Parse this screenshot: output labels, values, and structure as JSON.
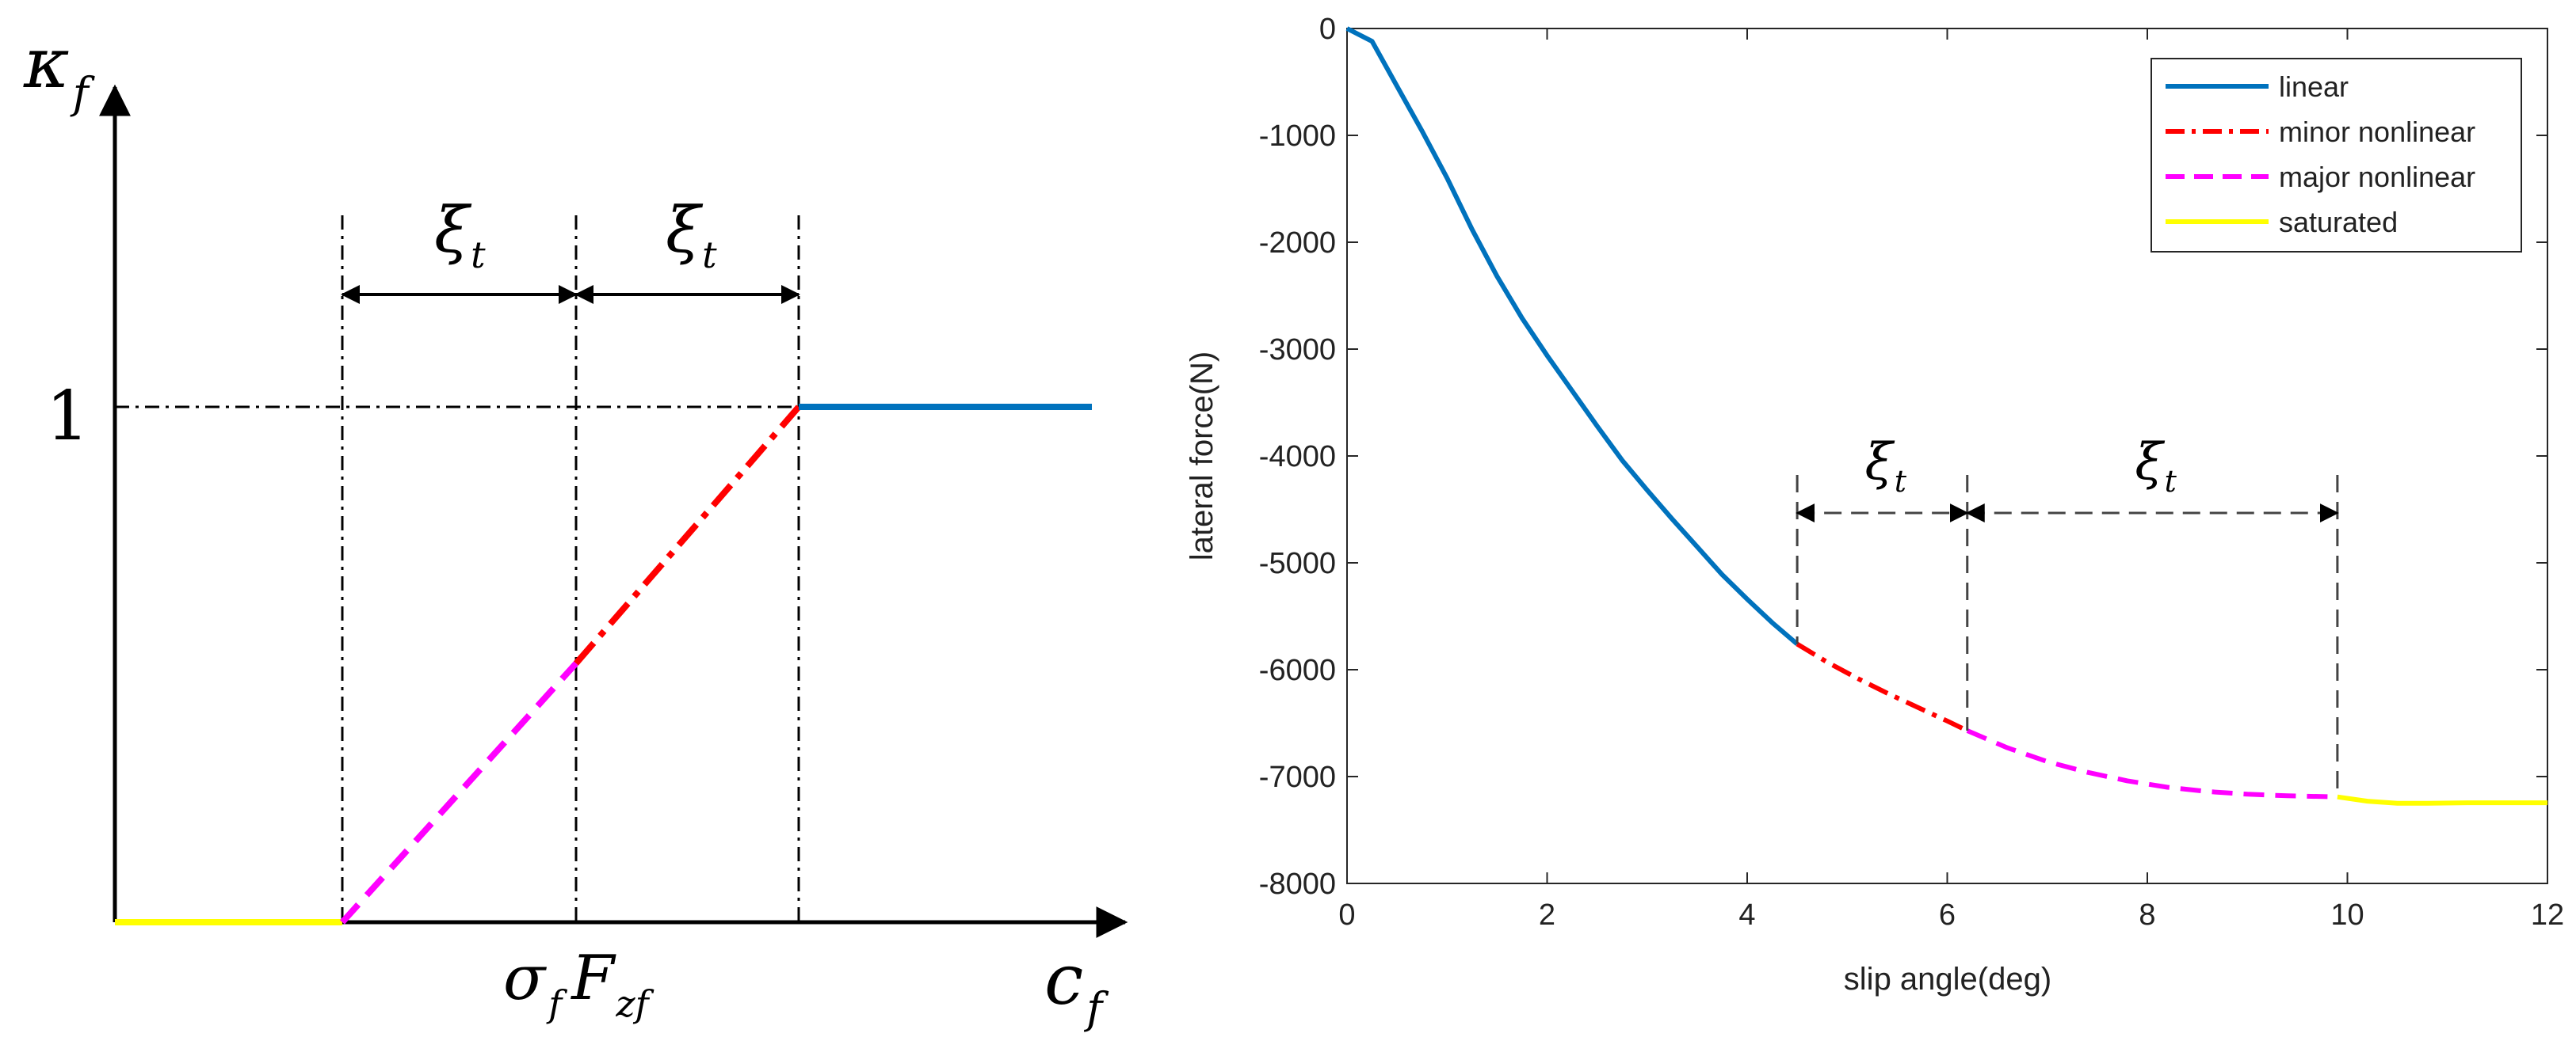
{
  "colors": {
    "linear": "#0072BD",
    "minor_nonlinear": "#FF0000",
    "major_nonlinear": "#FF00FF",
    "saturated": "#FFFF00",
    "axis": "#000000",
    "dash_guides": "#000000"
  },
  "left_diagram": {
    "y_label": {
      "main": "κ",
      "sub": "f"
    },
    "x_label": {
      "main": "c",
      "sub": "f"
    },
    "center_label": {
      "sigma": "σ",
      "sigma_sub": "f",
      "F": "F",
      "F_sub": "zf"
    },
    "y_tick_one": "1",
    "interval_label": {
      "main": "ξ",
      "sub": "t"
    }
  },
  "chart_data": [
    {
      "type": "line",
      "title": "",
      "xlabel": "slip angle(deg)",
      "ylabel": "lateral force(N)",
      "xlim": [
        0,
        12
      ],
      "ylim": [
        -8000,
        0
      ],
      "xticks": [
        0,
        2,
        4,
        6,
        8,
        10,
        12
      ],
      "yticks": [
        0,
        -1000,
        -2000,
        -3000,
        -4000,
        -5000,
        -6000,
        -7000,
        -8000
      ],
      "grid": false,
      "legend_position": "top-right",
      "series": [
        {
          "name": "linear",
          "style": "solid",
          "x": [
            0,
            0.25,
            0.5,
            0.75,
            1.0,
            1.25,
            1.5,
            1.75,
            2.0,
            2.25,
            2.5,
            2.75,
            3.0,
            3.25,
            3.5,
            3.75,
            4.0,
            4.25,
            4.5
          ],
          "y": [
            0,
            -120,
            -540,
            -960,
            -1400,
            -1880,
            -2320,
            -2710,
            -3060,
            -3390,
            -3720,
            -4040,
            -4320,
            -4590,
            -4850,
            -5110,
            -5340,
            -5560,
            -5760
          ]
        },
        {
          "name": "minor nonlinear",
          "style": "dash-dot",
          "x": [
            4.5,
            4.8,
            5.1,
            5.4,
            5.7,
            6.0,
            6.2
          ],
          "y": [
            -5760,
            -5930,
            -6080,
            -6220,
            -6350,
            -6480,
            -6570
          ]
        },
        {
          "name": "major nonlinear",
          "style": "dashed",
          "x": [
            6.2,
            6.6,
            7.0,
            7.4,
            7.8,
            8.2,
            8.6,
            9.0,
            9.4,
            9.9
          ],
          "y": [
            -6570,
            -6730,
            -6860,
            -6960,
            -7040,
            -7100,
            -7140,
            -7165,
            -7180,
            -7190
          ]
        },
        {
          "name": "saturated",
          "style": "solid",
          "x": [
            9.9,
            10.2,
            10.5,
            10.8,
            11.2,
            11.6,
            12.0
          ],
          "y": [
            -7190,
            -7230,
            -7250,
            -7250,
            -7245,
            -7245,
            -7245
          ]
        }
      ],
      "annotations": {
        "interval_label_main": "ξ",
        "interval_label_sub": "t",
        "guides_x": [
          4.5,
          6.2,
          9.9
        ]
      }
    }
  ]
}
